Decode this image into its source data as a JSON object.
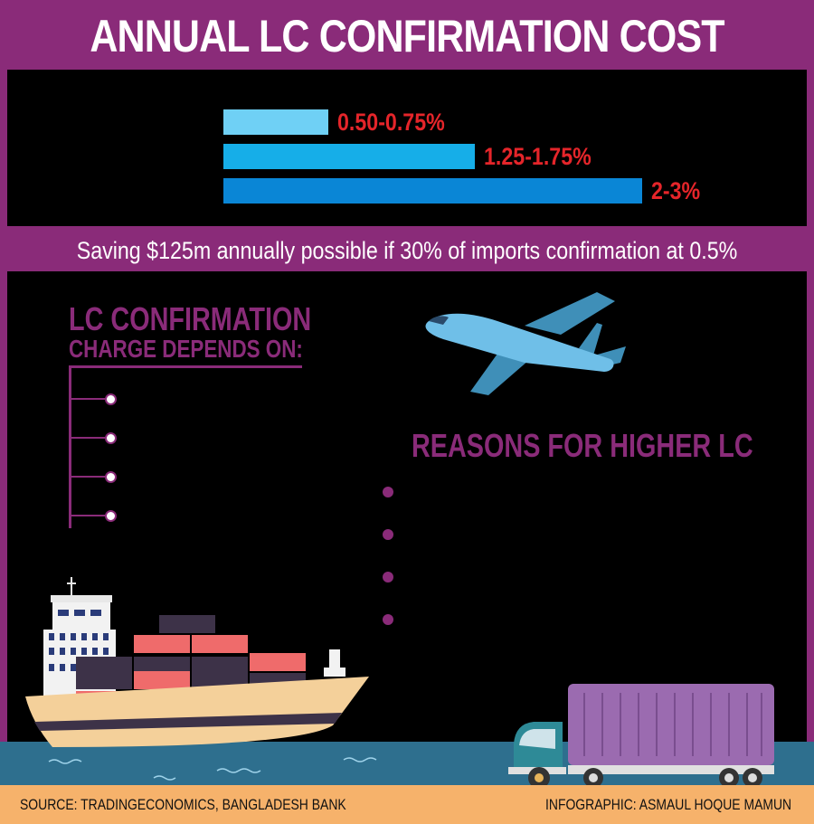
{
  "title": "ANNUAL LC CONFIRMATION COST",
  "chart_data": {
    "type": "bar",
    "orientation": "horizontal",
    "categories": [
      "0.50-0.75%",
      "1.25-1.75%",
      "2-3%"
    ],
    "values": [
      0.625,
      1.5,
      2.5
    ],
    "colors": [
      "#6fd0f5",
      "#16aee8",
      "#0a86d6"
    ]
  },
  "saving_text": "Saving $125m annually possible if 30% of imports confirmation at 0.5%",
  "lc_charge": {
    "heading_line1": "LC CONFIRMATION",
    "heading_line2": "CHARGE DEPENDS ON:",
    "items": [
      "",
      "",
      "",
      ""
    ]
  },
  "reasons": {
    "heading": "REASONS FOR HIGHER LC",
    "items": [
      "",
      "",
      "",
      ""
    ]
  },
  "footer": {
    "source": "SOURCE: TRADINGECONOMICS, BANGLADESH BANK",
    "credit": "INFOGRAPHIC: ASMAUL HOQUE MAMUN"
  },
  "colors": {
    "brand_purple": "#8a2b79",
    "value_red": "#e5252a",
    "sea": "#2e6f8e",
    "footer_sand": "#f6b26b"
  }
}
